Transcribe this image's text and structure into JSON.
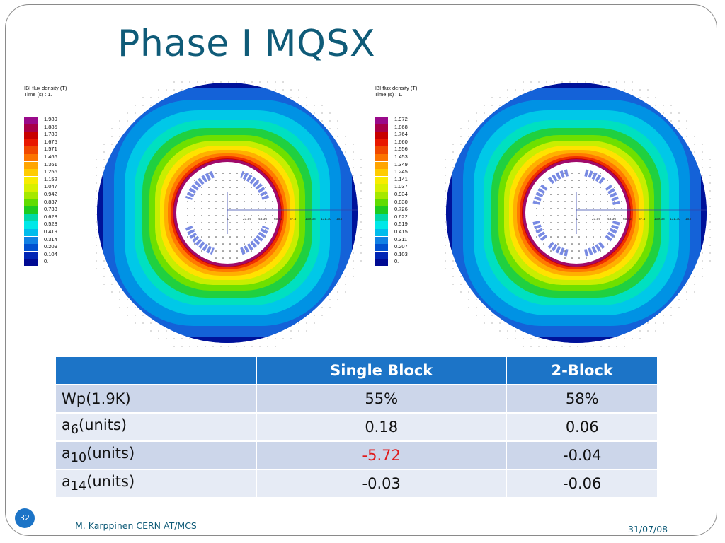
{
  "slide": {
    "title": "Phase I MQSX",
    "page_number": "32",
    "footer_author": "M. Karppinen CERN AT/MCS",
    "footer_date": "31/07/08"
  },
  "plots": [
    {
      "legend_title": "IBI flux density (T)",
      "legend_time": "Time (s) :       1.",
      "levels": [
        "1.989",
        "1.885",
        "1.780",
        "1.675",
        "1.571",
        "1.466",
        "1.361",
        "1.256",
        "1.152",
        "1.047",
        "0.942",
        "0.837",
        "0.733",
        "0.628",
        "0.523",
        "0.419",
        "0.314",
        "0.209",
        "0.104",
        "0."
      ],
      "axis_ticks": [
        "0",
        "21.59",
        "43.36",
        "65.42",
        "87.5",
        "109.38",
        "131.30",
        "153"
      ]
    },
    {
      "legend_title": "IBI flux density (T)",
      "legend_time": "Time (s) :       1.",
      "levels": [
        "1.972",
        "1.868",
        "1.764",
        "1.660",
        "1.556",
        "1.453",
        "1.349",
        "1.245",
        "1.141",
        "1.037",
        "0.934",
        "0.830",
        "0.726",
        "0.622",
        "0.519",
        "0.415",
        "0.311",
        "0.207",
        "0.103",
        "0."
      ],
      "axis_ticks": [
        "0",
        "21.59",
        "43.36",
        "65.42",
        "87.5",
        "109.38",
        "131.30",
        "153"
      ]
    }
  ],
  "level_colors": [
    "#9a0a8a",
    "#a80048",
    "#c80000",
    "#e81800",
    "#f04800",
    "#fc7400",
    "#ffa400",
    "#ffcc00",
    "#f8ec00",
    "#d8f000",
    "#a4e800",
    "#60dc00",
    "#1ccc20",
    "#00d8a8",
    "#00e8e8",
    "#00bcec",
    "#1080e4",
    "#0050d0",
    "#0024b4",
    "#000a92"
  ],
  "table": {
    "headers": [
      "",
      "Single Block",
      "2-Block"
    ],
    "rows": [
      {
        "label": "Wp(1.9K)",
        "sub": "",
        "suffix": "",
        "single": "55%",
        "two": "58%"
      },
      {
        "label": "a",
        "sub": "6",
        "suffix": "(units)",
        "single": "0.18",
        "two": "0.06"
      },
      {
        "label": "a",
        "sub": "10",
        "suffix": "(units)",
        "single": "-5.72",
        "two": "-0.04"
      },
      {
        "label": "a",
        "sub": "14",
        "suffix": "(units)",
        "single": "-0.03",
        "two": "-0.06"
      }
    ]
  }
}
